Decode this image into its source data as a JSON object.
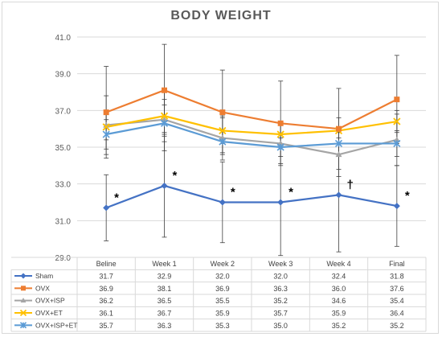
{
  "chart_data": {
    "type": "line",
    "title": "BODY WEIGHT",
    "categories": [
      "Beline",
      "Week 1",
      "Week 2",
      "Week 3",
      "Week 4",
      "Final"
    ],
    "ylim": [
      29.0,
      41.0
    ],
    "yticks": [
      "29.0",
      "31.0",
      "33.0",
      "35.0",
      "37.0",
      "39.0",
      "41.0"
    ],
    "grid": true,
    "legend_placement": "data-table-below",
    "series": [
      {
        "name": "Sham",
        "color": "#4472c4",
        "marker": "diamond",
        "values": [
          31.7,
          32.9,
          32.0,
          32.0,
          32.4,
          31.8
        ],
        "labels": [
          "31.7",
          "32.9",
          "32.0",
          "32.0",
          "32.4",
          "31.8"
        ],
        "error": [
          1.8,
          2.8,
          2.2,
          2.9,
          3.1,
          2.2
        ]
      },
      {
        "name": "OVX",
        "color": "#ed7d31",
        "marker": "square",
        "values": [
          36.9,
          38.1,
          36.9,
          36.3,
          36.0,
          37.6
        ],
        "labels": [
          "36.9",
          "38.1",
          "36.9",
          "36.3",
          "36.0",
          "37.6"
        ],
        "error": [
          2.5,
          2.5,
          2.3,
          2.3,
          2.2,
          2.4
        ]
      },
      {
        "name": "OVX+ISP",
        "color": "#a5a5a5",
        "marker": "triangle",
        "values": [
          36.2,
          36.5,
          35.5,
          35.2,
          34.6,
          35.4
        ],
        "labels": [
          "36.2",
          "36.5",
          "35.5",
          "35.2",
          "34.6",
          "35.4"
        ],
        "error": [
          1.6,
          1.7,
          1.2,
          1.1,
          1.2,
          1.4
        ]
      },
      {
        "name": "OVX+ET",
        "color": "#ffc000",
        "marker": "x",
        "values": [
          36.1,
          36.7,
          35.9,
          35.7,
          35.9,
          36.4
        ],
        "labels": [
          "36.1",
          "36.7",
          "35.9",
          "35.7",
          "35.9",
          "36.4"
        ],
        "error": [
          0.7,
          0.9,
          0.7,
          0.5,
          0.7,
          0.6
        ]
      },
      {
        "name": "OVX+ISP+ET",
        "color": "#5b9bd5",
        "marker": "star",
        "values": [
          35.7,
          36.3,
          35.3,
          35.0,
          35.2,
          35.2
        ],
        "labels": [
          "35.7",
          "36.3",
          "35.3",
          "35.0",
          "35.2",
          "35.2"
        ],
        "error": [
          0.8,
          1.0,
          0.6,
          0.5,
          0.6,
          0.7
        ]
      }
    ],
    "annotations": [
      "*",
      "*",
      "*",
      "*",
      "†",
      "*"
    ]
  }
}
